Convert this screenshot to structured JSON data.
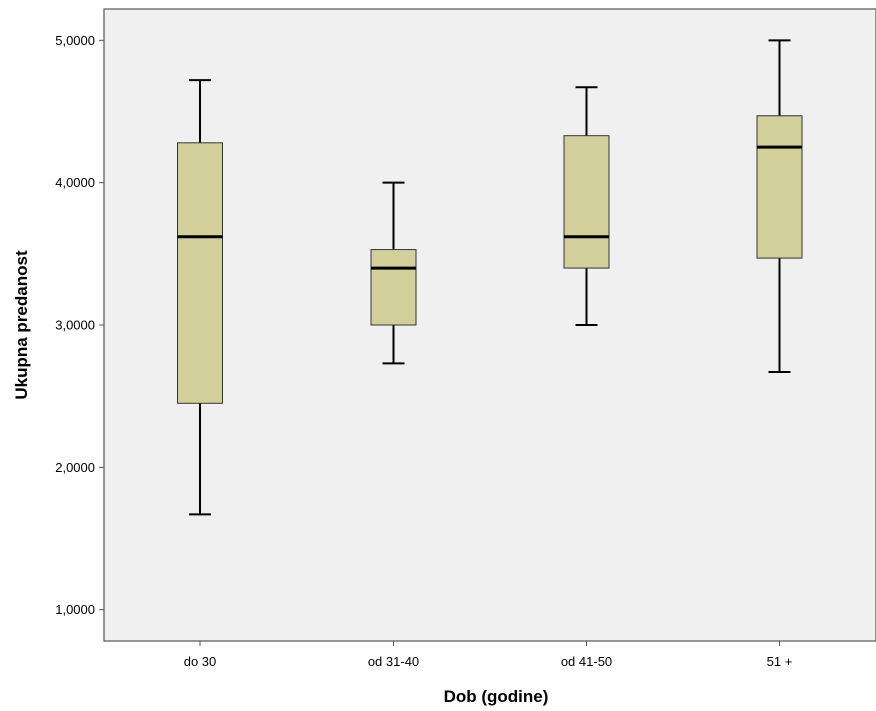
{
  "chart_data": {
    "type": "boxplot",
    "xlabel": "Dob (godine)",
    "ylabel": "Ukupna predanost",
    "ylim": [
      0.78,
      5.22
    ],
    "yticks": [
      {
        "value": 1,
        "label": "1,0000"
      },
      {
        "value": 2,
        "label": "2,0000"
      },
      {
        "value": 3,
        "label": "3,0000"
      },
      {
        "value": 4,
        "label": "4,0000"
      },
      {
        "value": 5,
        "label": "5,0000"
      }
    ],
    "categories": [
      "do 30",
      "od 31-40",
      "od 41-50",
      "51 +"
    ],
    "boxes": [
      {
        "min": 1.67,
        "q1": 2.45,
        "median": 3.62,
        "q3": 4.28,
        "max": 4.72
      },
      {
        "min": 2.73,
        "q1": 3.0,
        "median": 3.4,
        "q3": 3.53,
        "max": 4.0
      },
      {
        "min": 3.0,
        "q1": 3.4,
        "median": 3.62,
        "q3": 4.33,
        "max": 4.67
      },
      {
        "min": 2.67,
        "q1": 3.47,
        "median": 4.25,
        "q3": 4.47,
        "max": 5.0
      }
    ],
    "colors": {
      "box_fill": "#d3cf9a",
      "plot_bg": "#f0f0f0",
      "line": "#000000",
      "frame": "#555555"
    },
    "grid": false,
    "legend": "none"
  }
}
